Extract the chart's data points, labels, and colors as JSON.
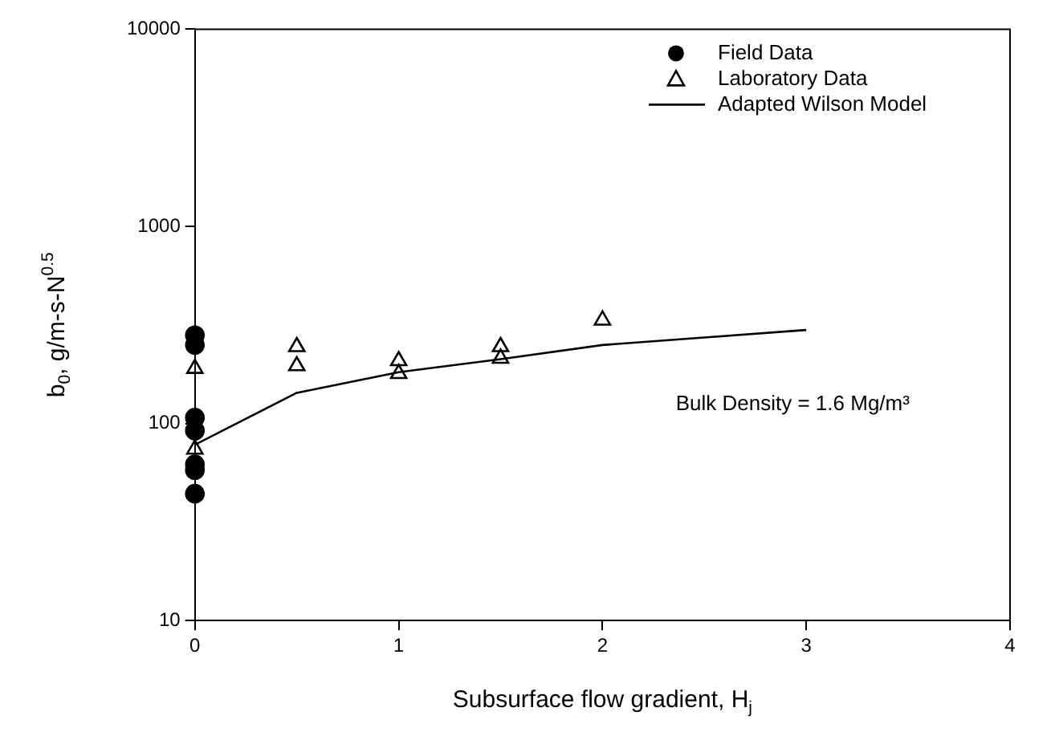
{
  "chart_data": {
    "type": "scatter",
    "xlabel": "Subsurface flow gradient, H$_{j}$",
    "ylabel": "b$_{0}$, g/m-s-N$^{0.5}$",
    "xlim": [
      0,
      4
    ],
    "xticks": [
      0,
      1,
      2,
      3,
      4
    ],
    "ylim": [
      10,
      10000
    ],
    "yticks": [
      10,
      100,
      1000,
      10000
    ],
    "log": "y",
    "grid": false,
    "legend": "top right",
    "annotations": [
      "Bulk Density = 1.6 Mg/m³"
    ],
    "series": [
      {
        "name": "Field Data",
        "marker": "circle",
        "color": "#000000",
        "x": [
          0,
          0,
          0,
          0,
          0,
          0,
          0
        ],
        "values": [
          280,
          250,
          107,
          92,
          62,
          58,
          44
        ]
      },
      {
        "name": "Laboratory Data",
        "marker": "triangle",
        "color": "#000000",
        "x": [
          0,
          0,
          0.5,
          0.5,
          1,
          1,
          1.5,
          1.5,
          2
        ],
        "values": [
          190,
          74,
          245,
          196,
          208,
          179,
          245,
          214,
          334
        ]
      },
      {
        "name": "Adapted Wilson Model",
        "type": "line",
        "marker": "none",
        "line_style": "solid",
        "color": "#000000",
        "x": [
          0,
          0.5,
          1,
          1.5,
          2,
          2.5,
          3
        ],
        "values": [
          78,
          143,
          182,
          212,
          250,
          273,
          298
        ]
      }
    ]
  }
}
